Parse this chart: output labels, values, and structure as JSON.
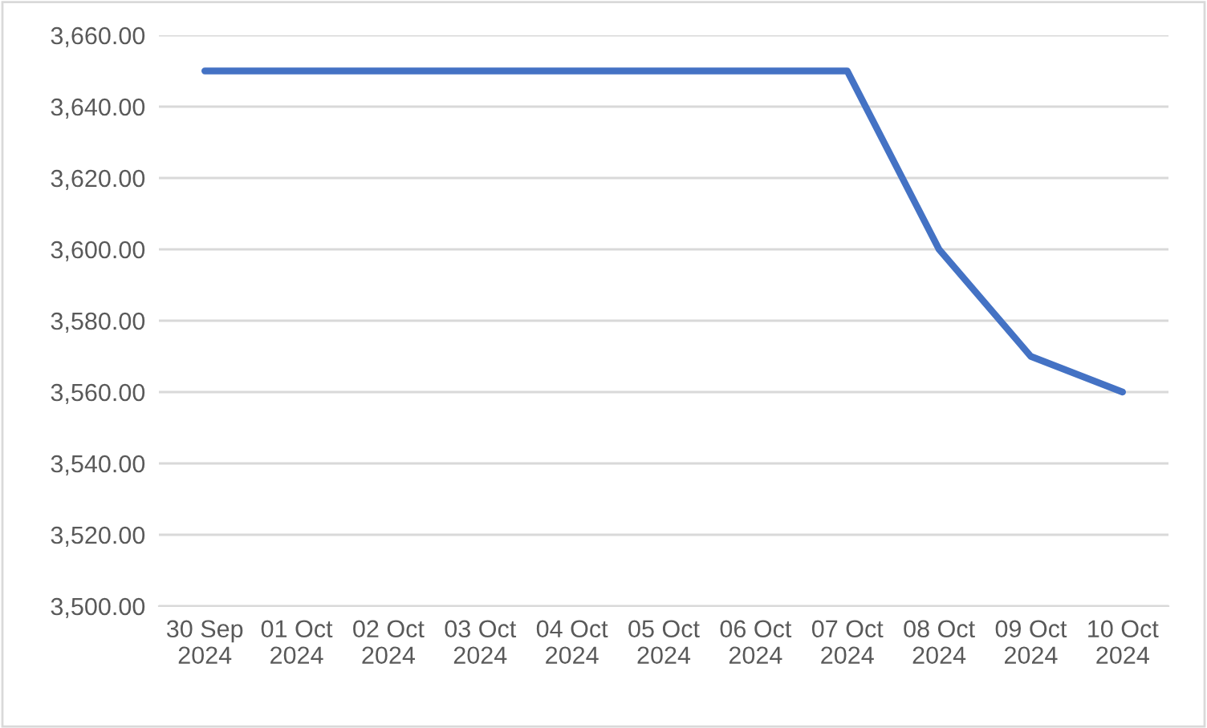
{
  "chart_data": {
    "type": "line",
    "categories": [
      "30 Sep\n2024",
      "01 Oct\n2024",
      "02 Oct\n2024",
      "03 Oct\n2024",
      "04 Oct\n2024",
      "05 Oct\n2024",
      "06 Oct\n2024",
      "07 Oct\n2024",
      "08 Oct\n2024",
      "09 Oct\n2024",
      "10 Oct\n2024"
    ],
    "series": [
      {
        "color": "#4472c4",
        "values": [
          3650,
          3650,
          3650,
          3650,
          3650,
          3650,
          3650,
          3650,
          3600,
          3570,
          3560
        ]
      }
    ],
    "ylim": [
      3500,
      3660
    ],
    "yticks": [
      {
        "value": 3500,
        "label": "3,500.00"
      },
      {
        "value": 3520,
        "label": "3,520.00"
      },
      {
        "value": 3540,
        "label": "3,540.00"
      },
      {
        "value": 3560,
        "label": "3,560.00"
      },
      {
        "value": 3580,
        "label": "3,580.00"
      },
      {
        "value": 3600,
        "label": "3,600.00"
      },
      {
        "value": 3620,
        "label": "3,620.00"
      },
      {
        "value": 3640,
        "label": "3,640.00"
      },
      {
        "value": 3660,
        "label": "3,660.00"
      }
    ],
    "grid": "y",
    "marker": "none",
    "line_style": "solid"
  }
}
